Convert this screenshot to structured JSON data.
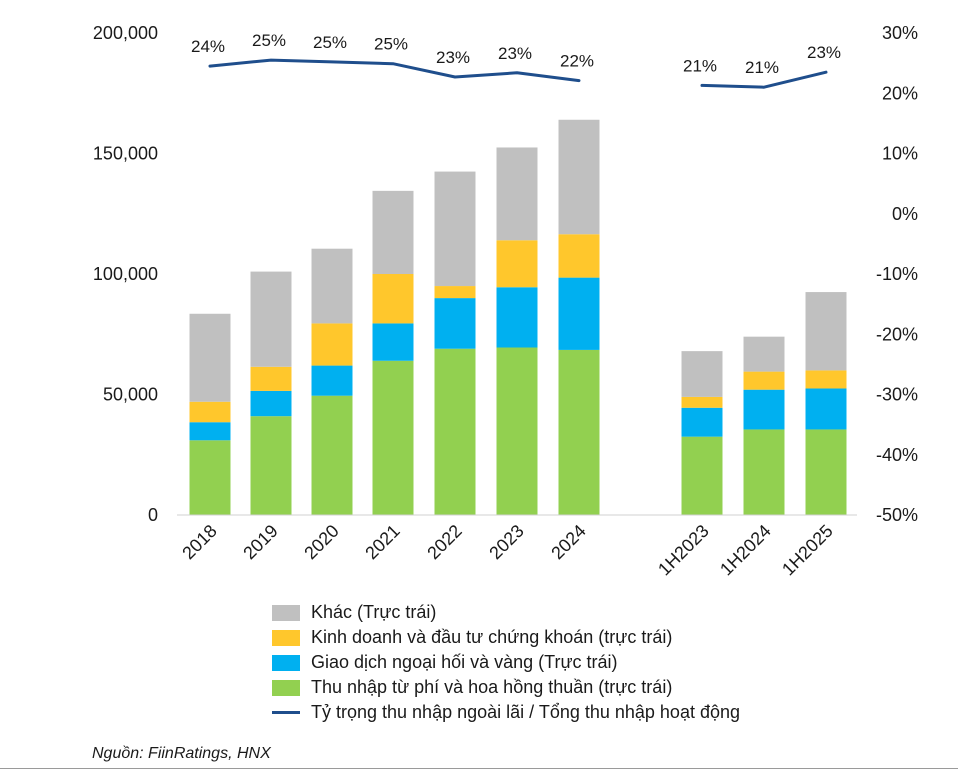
{
  "chart_data": {
    "type": "bar",
    "stacked": true,
    "categories": [
      "2018",
      "2019",
      "2020",
      "2021",
      "2022",
      "2023",
      "2024",
      "1H2023",
      "1H2024",
      "1H2025"
    ],
    "series": [
      {
        "name": "Thu nhập từ phí và hoa hồng thuần (trực trái)",
        "color": "#92d050",
        "axis": "left",
        "values": [
          31000,
          41000,
          49500,
          64000,
          69000,
          69500,
          68500,
          32500,
          35500,
          35500
        ]
      },
      {
        "name": "Giao dịch ngoại hối và vàng (Trực trái)",
        "color": "#00b0f0",
        "axis": "left",
        "values": [
          7500,
          10500,
          12500,
          15500,
          21000,
          25000,
          30000,
          12000,
          16500,
          17000
        ]
      },
      {
        "name": "Kinh doanh và đầu tư chứng khoán (trực trái)",
        "color": "#ffc72c",
        "axis": "left",
        "values": [
          8500,
          10000,
          17500,
          20500,
          5000,
          19500,
          18000,
          4500,
          7500,
          7500
        ]
      },
      {
        "name": "Khác (Trục trái)",
        "color": "#c0c0c0",
        "axis": "left",
        "values": [
          36500,
          39500,
          31000,
          34500,
          47500,
          38500,
          47500,
          19000,
          14500,
          32500
        ]
      }
    ],
    "line_series": {
      "name": "Tỷ trọng thu nhập ngoài lãi / Tổng thu nhập hoạt động",
      "color": "#1f4e8c",
      "axis": "right",
      "values": [
        24.5,
        25.5,
        25.2,
        24.9,
        22.7,
        23.4,
        22.1,
        21.3,
        21.0,
        23.5
      ],
      "labels": [
        "24%",
        "25%",
        "25%",
        "25%",
        "23%",
        "23%",
        "22%",
        "21%",
        "21%",
        "23%"
      ],
      "segments": [
        [
          0,
          6
        ],
        [
          7,
          9
        ]
      ]
    },
    "left_axis": {
      "ylim": [
        0,
        200000
      ],
      "ticks": [
        "200,000",
        "150,000",
        "100,000",
        "50,000",
        "0"
      ],
      "tick_values": [
        200000,
        150000,
        100000,
        50000,
        0
      ]
    },
    "right_axis": {
      "ylim": [
        -50,
        30
      ],
      "ticks": [
        "30%",
        "20%",
        "10%",
        "0%",
        "-10%",
        "-20%",
        "-30%",
        "-40%",
        "-50%"
      ],
      "tick_values": [
        30,
        20,
        10,
        0,
        -10,
        -20,
        -30,
        -40,
        -50
      ]
    },
    "title": "",
    "xlabel": "",
    "ylabel": "",
    "grid": false,
    "legend_position": "bottom"
  },
  "legend": [
    {
      "label": "Khác (Trực trái)",
      "color": "#c0c0c0",
      "kind": "box"
    },
    {
      "label": "Kinh doanh và đầu tư chứng khoán (trực trái)",
      "color": "#ffc72c",
      "kind": "box"
    },
    {
      "label": "Giao dịch ngoại hối và vàng (Trực trái)",
      "color": "#00b0f0",
      "kind": "box"
    },
    {
      "label": "Thu nhập từ phí và hoa hồng thuần (trực trái)",
      "color": "#92d050",
      "kind": "box"
    },
    {
      "label": "Tỷ trọng thu nhập ngoài lãi / Tổng thu nhập hoạt động",
      "color": "#1f4e8c",
      "kind": "line"
    }
  ],
  "source": "Nguồn: FiinRatings, HNX"
}
